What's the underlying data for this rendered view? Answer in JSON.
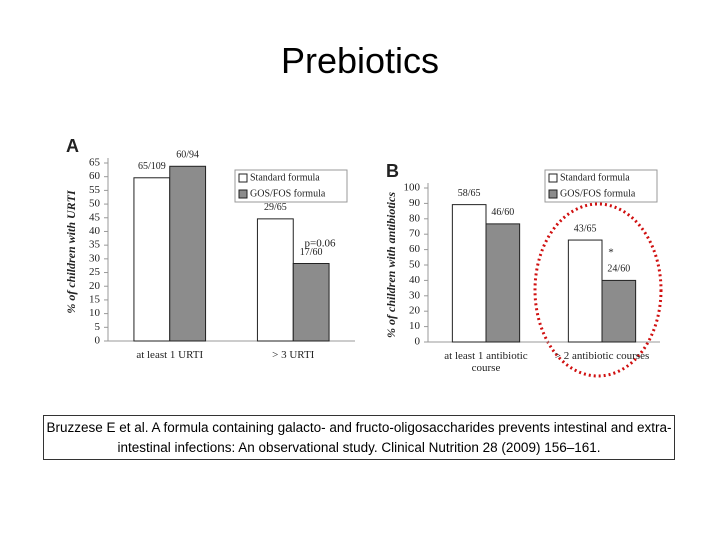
{
  "title": "Prebiotics",
  "citation": "Bruzzese E et al. A formula containing galacto- and fructo-oligosaccharides prevents intestinal and extra-intestinal infections: An observational study. Clinical Nutrition 28 (2009) 156–161.",
  "chart_data": [
    {
      "type": "bar",
      "panel": "A",
      "y_label": "% of children with URTI",
      "categories": [
        "at least 1 URTI",
        "> 3 URTI"
      ],
      "series": [
        {
          "name": "Standard formula",
          "color": "#ffffff",
          "values": [
            59.6,
            44.6
          ],
          "value_labels": [
            "65/109",
            "29/65"
          ]
        },
        {
          "name": "GOS/FOS  formula",
          "color": "#8c8c8c",
          "values": [
            63.8,
            28.3
          ],
          "value_labels": [
            "60/94",
            "17/60"
          ]
        }
      ],
      "annotation": "p=0.06",
      "ylim": [
        0,
        65
      ],
      "yticks": [
        0,
        5,
        10,
        15,
        20,
        25,
        30,
        35,
        40,
        45,
        50,
        55,
        60,
        65
      ],
      "grid": false
    },
    {
      "type": "bar",
      "panel": "B",
      "y_label": "% of children with antibiotics",
      "categories": [
        "at least 1 antibiotic course",
        "> 2 antibiotic courses"
      ],
      "series": [
        {
          "name": "Standard formula",
          "color": "#ffffff",
          "values": [
            89.2,
            66.2
          ],
          "value_labels": [
            "58/65",
            "43/65"
          ]
        },
        {
          "name": "GOS/FOS  formula",
          "color": "#8c8c8c",
          "values": [
            76.7,
            40
          ],
          "value_labels": [
            "46/60",
            "24/60"
          ]
        }
      ],
      "annotation": "*",
      "ylim": [
        0,
        100
      ],
      "yticks": [
        0,
        10,
        20,
        30,
        40,
        50,
        60,
        70,
        80,
        90,
        100
      ],
      "grid": false
    }
  ]
}
